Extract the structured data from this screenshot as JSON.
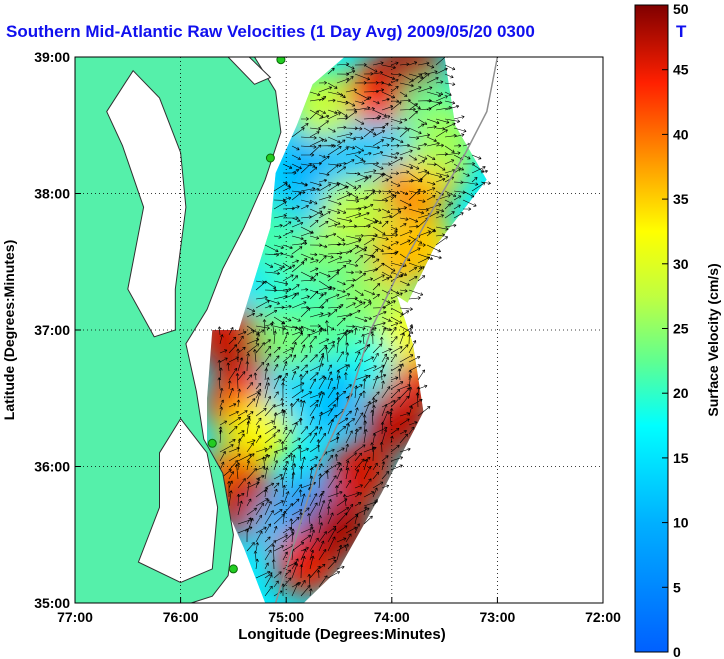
{
  "chart_data": {
    "type": "heatmap",
    "title": "Southern Mid-Atlantic Raw Velocities (1 Day Avg) 2009/05/20 0300",
    "title_tail": "T",
    "xlabel": "Longitude (Degrees:Minutes)",
    "ylabel": "Latitude (Degrees:Minutes)",
    "colorbar_label": "Surface Velocity (cm/s)",
    "xlim": [
      -77.0,
      -72.0
    ],
    "ylim": [
      35.0,
      39.0
    ],
    "x_ticks": [
      {
        "value": -77,
        "label": "77:00"
      },
      {
        "value": -76,
        "label": "76:00"
      },
      {
        "value": -75,
        "label": "75:00"
      },
      {
        "value": -74,
        "label": "74:00"
      },
      {
        "value": -73,
        "label": "73:00"
      },
      {
        "value": -72,
        "label": "72:00"
      }
    ],
    "y_ticks": [
      {
        "value": 35,
        "label": "35:00"
      },
      {
        "value": 36,
        "label": "36:00"
      },
      {
        "value": 37,
        "label": "37:00"
      },
      {
        "value": 38,
        "label": "38:00"
      },
      {
        "value": 39,
        "label": "39:00"
      }
    ],
    "colorbar_ticks": [
      0,
      5,
      10,
      15,
      20,
      25,
      30,
      35,
      40,
      45,
      50
    ],
    "colorbar_range": [
      0,
      50
    ],
    "grid": true,
    "colormap": "jet",
    "field": [
      {
        "lon": -75.55,
        "lat": 36.95,
        "v": 46
      },
      {
        "lon": -75.3,
        "lat": 36.7,
        "v": 48
      },
      {
        "lon": -75.45,
        "lat": 36.45,
        "v": 44
      },
      {
        "lon": -75.25,
        "lat": 36.25,
        "v": 32
      },
      {
        "lon": -75.5,
        "lat": 35.9,
        "v": 40
      },
      {
        "lon": -75.35,
        "lat": 35.7,
        "v": 47
      },
      {
        "lon": -75.0,
        "lat": 35.55,
        "v": 12
      },
      {
        "lon": -74.75,
        "lat": 35.7,
        "v": 8
      },
      {
        "lon": -74.8,
        "lat": 35.3,
        "v": 45
      },
      {
        "lon": -74.5,
        "lat": 35.55,
        "v": 48
      },
      {
        "lon": -74.3,
        "lat": 35.95,
        "v": 46
      },
      {
        "lon": -73.95,
        "lat": 36.35,
        "v": 47
      },
      {
        "lon": -73.75,
        "lat": 36.7,
        "v": 45
      },
      {
        "lon": -73.85,
        "lat": 37.0,
        "v": 32
      },
      {
        "lon": -74.3,
        "lat": 36.75,
        "v": 18
      },
      {
        "lon": -74.6,
        "lat": 36.5,
        "v": 10
      },
      {
        "lon": -74.9,
        "lat": 36.6,
        "v": 14
      },
      {
        "lon": -74.95,
        "lat": 36.95,
        "v": 24
      },
      {
        "lon": -74.55,
        "lat": 37.05,
        "v": 22
      },
      {
        "lon": -74.2,
        "lat": 37.3,
        "v": 25
      },
      {
        "lon": -75.05,
        "lat": 37.35,
        "v": 20
      },
      {
        "lon": -75.45,
        "lat": 37.45,
        "v": 15
      },
      {
        "lon": -74.7,
        "lat": 37.6,
        "v": 24
      },
      {
        "lon": -74.4,
        "lat": 37.85,
        "v": 28
      },
      {
        "lon": -74.05,
        "lat": 37.95,
        "v": 27
      },
      {
        "lon": -73.75,
        "lat": 38.05,
        "v": 42
      },
      {
        "lon": -73.7,
        "lat": 37.6,
        "v": 34
      },
      {
        "lon": -73.9,
        "lat": 37.55,
        "v": 36
      },
      {
        "lon": -73.6,
        "lat": 38.2,
        "v": 35
      },
      {
        "lon": -74.95,
        "lat": 37.95,
        "v": 12
      },
      {
        "lon": -75.2,
        "lat": 37.7,
        "v": 21
      },
      {
        "lon": -74.75,
        "lat": 38.3,
        "v": 10
      },
      {
        "lon": -74.35,
        "lat": 38.35,
        "v": 12
      },
      {
        "lon": -73.95,
        "lat": 38.5,
        "v": 14
      },
      {
        "lon": -74.65,
        "lat": 38.65,
        "v": 28
      },
      {
        "lon": -74.1,
        "lat": 38.75,
        "v": 44
      },
      {
        "lon": -73.8,
        "lat": 38.9,
        "v": 48
      },
      {
        "lon": -73.6,
        "lat": 38.6,
        "v": 22
      },
      {
        "lon": -73.5,
        "lat": 38.4,
        "v": 26
      }
    ],
    "markers": [
      {
        "lon": -75.05,
        "lat": 38.98
      },
      {
        "lon": -75.15,
        "lat": 38.26
      },
      {
        "lon": -75.7,
        "lat": 36.17
      },
      {
        "lon": -75.5,
        "lat": 35.25
      }
    ],
    "colors": {
      "land": "#55f0aa",
      "water": "#ffffff",
      "coast": "#303030",
      "marker": "#22cc22",
      "depth_contour": "#909090",
      "vector": "#000000",
      "title": "#1010ee"
    }
  }
}
